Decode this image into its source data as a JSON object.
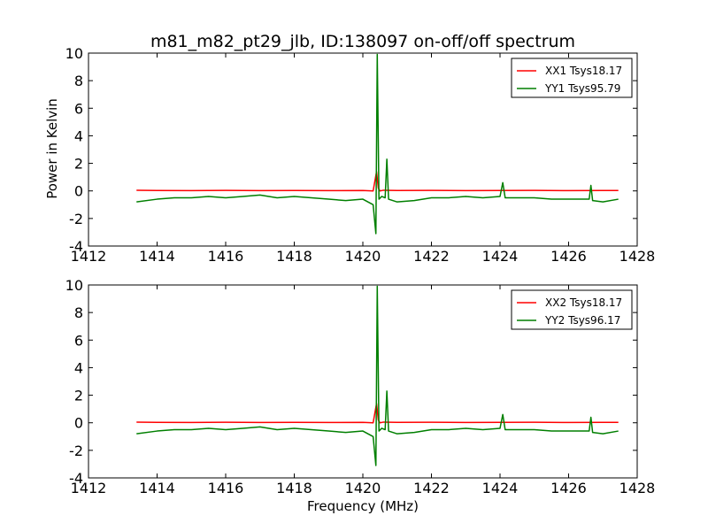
{
  "chart_data": [
    {
      "type": "line",
      "title": "m81_m82_pt29_jlb, ID:138097 on-off/off spectrum",
      "xlabel": "",
      "ylabel": "Power in Kelvin",
      "xlim": [
        1412,
        1428
      ],
      "ylim": [
        -4,
        10
      ],
      "xticks": [
        1412,
        1414,
        1416,
        1418,
        1420,
        1422,
        1424,
        1426,
        1428
      ],
      "yticks": [
        -4,
        -2,
        0,
        2,
        4,
        6,
        8,
        10
      ],
      "legend_position": "top-right",
      "series": [
        {
          "name": "XX1 Tsys18.17",
          "color": "#ff0000",
          "x": [
            1413.4,
            1414.0,
            1415.0,
            1416.0,
            1417.0,
            1418.0,
            1419.0,
            1420.0,
            1420.3,
            1420.4,
            1420.45,
            1420.5,
            1420.6,
            1421.0,
            1422.0,
            1423.0,
            1424.0,
            1425.0,
            1426.0,
            1427.0,
            1427.45
          ],
          "y": [
            0.05,
            0.03,
            0.02,
            0.04,
            0.02,
            0.03,
            0.02,
            0.03,
            0.0,
            1.4,
            0.2,
            0.0,
            0.05,
            0.03,
            0.04,
            0.02,
            0.03,
            0.04,
            0.02,
            0.03,
            0.03
          ]
        },
        {
          "name": "YY1 Tsys95.79",
          "color": "#007f00",
          "x": [
            1413.4,
            1414.0,
            1414.5,
            1415.0,
            1415.5,
            1416.0,
            1416.5,
            1417.0,
            1417.5,
            1418.0,
            1418.5,
            1419.0,
            1419.5,
            1420.0,
            1420.3,
            1420.38,
            1420.42,
            1420.47,
            1420.55,
            1420.65,
            1420.7,
            1420.75,
            1421.0,
            1421.5,
            1422.0,
            1422.5,
            1423.0,
            1423.5,
            1424.0,
            1424.08,
            1424.15,
            1424.5,
            1425.0,
            1425.5,
            1426.0,
            1426.6,
            1426.65,
            1426.7,
            1427.0,
            1427.45
          ],
          "y": [
            -0.8,
            -0.6,
            -0.5,
            -0.5,
            -0.4,
            -0.5,
            -0.4,
            -0.3,
            -0.5,
            -0.4,
            -0.5,
            -0.6,
            -0.7,
            -0.6,
            -1.0,
            -3.1,
            9.9,
            -0.6,
            -0.4,
            -0.5,
            2.3,
            -0.6,
            -0.8,
            -0.7,
            -0.5,
            -0.5,
            -0.4,
            -0.5,
            -0.4,
            0.6,
            -0.5,
            -0.5,
            -0.5,
            -0.6,
            -0.6,
            -0.6,
            0.4,
            -0.7,
            -0.8,
            -0.6
          ]
        }
      ]
    },
    {
      "type": "line",
      "title": "",
      "xlabel": "Frequency (MHz)",
      "ylabel": "",
      "xlim": [
        1412,
        1428
      ],
      "ylim": [
        -4,
        10
      ],
      "xticks": [
        1412,
        1414,
        1416,
        1418,
        1420,
        1422,
        1424,
        1426,
        1428
      ],
      "yticks": [
        -4,
        -2,
        0,
        2,
        4,
        6,
        8,
        10
      ],
      "legend_position": "top-right",
      "series": [
        {
          "name": "XX2 Tsys18.17",
          "color": "#ff0000",
          "x": [
            1413.4,
            1414.0,
            1415.0,
            1416.0,
            1417.0,
            1418.0,
            1419.0,
            1420.0,
            1420.3,
            1420.4,
            1420.45,
            1420.5,
            1420.6,
            1421.0,
            1422.0,
            1423.0,
            1424.0,
            1425.0,
            1426.0,
            1427.0,
            1427.45
          ],
          "y": [
            0.05,
            0.03,
            0.02,
            0.04,
            0.02,
            0.03,
            0.02,
            0.03,
            0.0,
            1.4,
            0.2,
            0.0,
            0.05,
            0.03,
            0.04,
            0.02,
            0.03,
            0.04,
            0.02,
            0.03,
            0.03
          ]
        },
        {
          "name": "YY2 Tsys96.17",
          "color": "#007f00",
          "x": [
            1413.4,
            1414.0,
            1414.5,
            1415.0,
            1415.5,
            1416.0,
            1416.5,
            1417.0,
            1417.5,
            1418.0,
            1418.5,
            1419.0,
            1419.5,
            1420.0,
            1420.3,
            1420.38,
            1420.42,
            1420.47,
            1420.55,
            1420.65,
            1420.7,
            1420.75,
            1421.0,
            1421.5,
            1422.0,
            1422.5,
            1423.0,
            1423.5,
            1424.0,
            1424.08,
            1424.15,
            1424.5,
            1425.0,
            1425.5,
            1426.0,
            1426.6,
            1426.65,
            1426.7,
            1427.0,
            1427.45
          ],
          "y": [
            -0.8,
            -0.6,
            -0.5,
            -0.5,
            -0.4,
            -0.5,
            -0.4,
            -0.3,
            -0.5,
            -0.4,
            -0.5,
            -0.6,
            -0.7,
            -0.6,
            -1.0,
            -3.1,
            9.9,
            -0.6,
            -0.4,
            -0.5,
            2.3,
            -0.6,
            -0.8,
            -0.7,
            -0.5,
            -0.5,
            -0.4,
            -0.5,
            -0.4,
            0.6,
            -0.5,
            -0.5,
            -0.5,
            -0.6,
            -0.6,
            -0.6,
            0.4,
            -0.7,
            -0.8,
            -0.6
          ]
        }
      ]
    }
  ]
}
